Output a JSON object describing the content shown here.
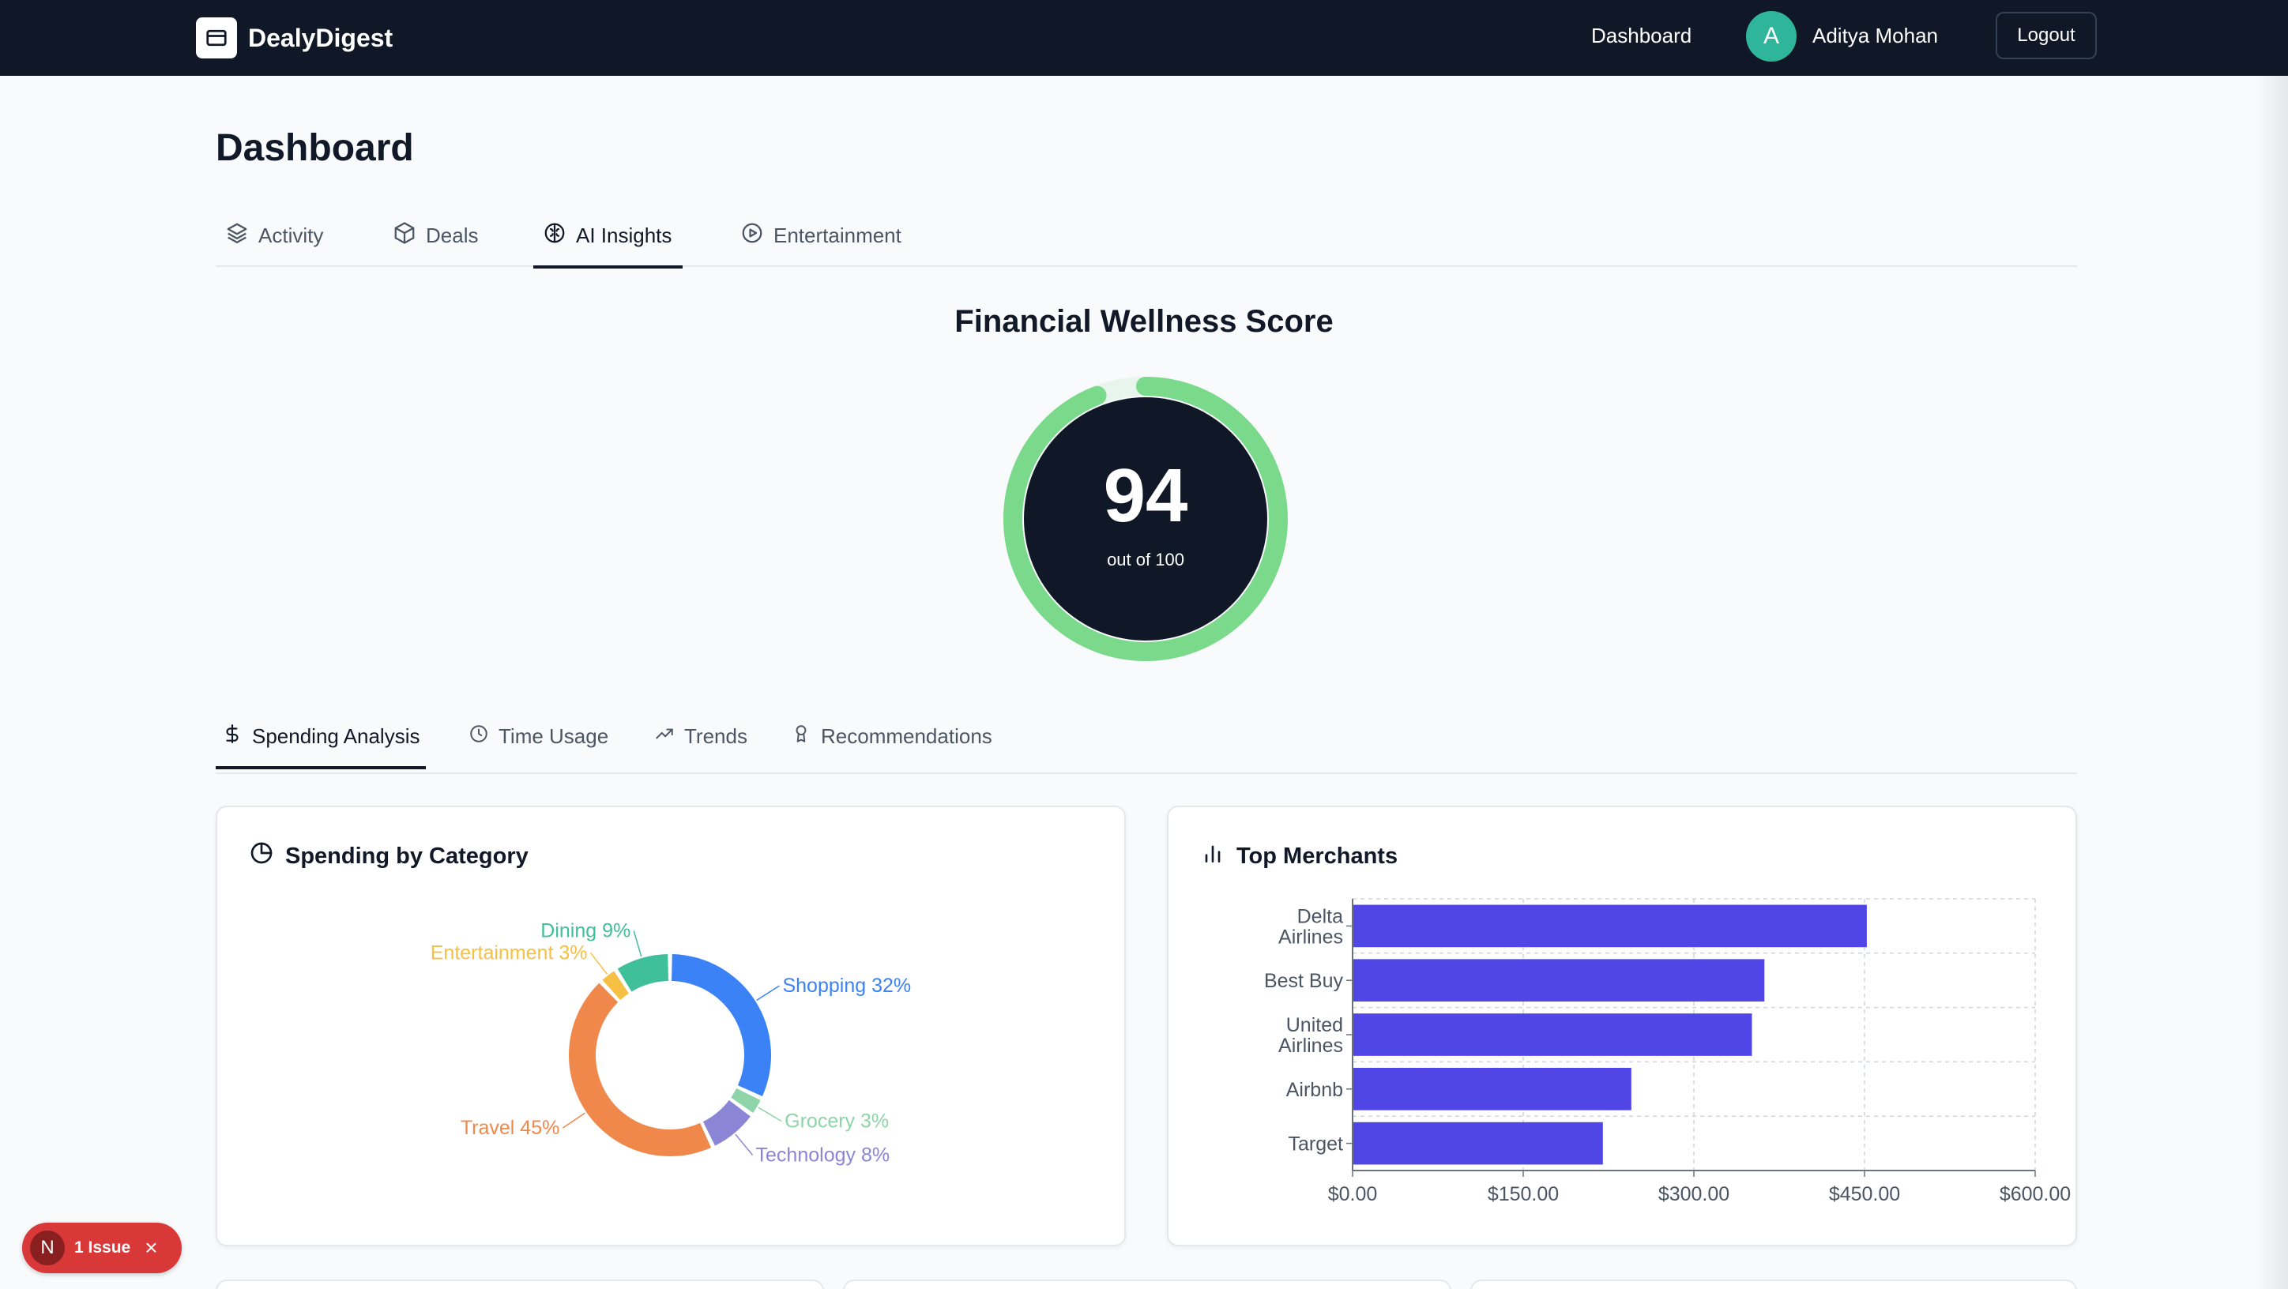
{
  "navbar": {
    "brand": "DealyDigest",
    "dashboard_link": "Dashboard",
    "user_initial": "A",
    "user_name": "Aditya Mohan",
    "logout_label": "Logout"
  },
  "page": {
    "title": "Dashboard"
  },
  "main_tabs": [
    {
      "label": "Activity",
      "icon": "layers-icon"
    },
    {
      "label": "Deals",
      "icon": "box-icon"
    },
    {
      "label": "AI Insights",
      "icon": "brain-icon",
      "active": true
    },
    {
      "label": "Entertainment",
      "icon": "play-circle-icon"
    }
  ],
  "wellness": {
    "title": "Financial Wellness Score",
    "score": "94",
    "subtitle": "out of 100",
    "ring_color": "#7ad98a",
    "center_color": "#101828"
  },
  "insight_tabs": [
    {
      "label": "Spending Analysis",
      "icon": "dollar-icon",
      "active": true
    },
    {
      "label": "Time Usage",
      "icon": "clock-icon"
    },
    {
      "label": "Trends",
      "icon": "trending-up-icon"
    },
    {
      "label": "Recommendations",
      "icon": "award-icon"
    }
  ],
  "spending_card": {
    "title": "Spending by Category"
  },
  "merchants_card": {
    "title": "Top Merchants"
  },
  "chart_data": [
    {
      "type": "pie",
      "title": "Spending by Category",
      "slices": [
        {
          "label": "Shopping 32%",
          "value": 32,
          "color": "#3b82f6"
        },
        {
          "label": "Grocery 3%",
          "value": 3,
          "color": "#8fd4a8"
        },
        {
          "label": "Technology 8%",
          "value": 8,
          "color": "#8b85d6"
        },
        {
          "label": "Travel 45%",
          "value": 45,
          "color": "#f0884c"
        },
        {
          "label": "Entertainment 3%",
          "value": 3,
          "color": "#f5c043"
        },
        {
          "label": "Dining 9%",
          "value": 9,
          "color": "#3fbf9a"
        }
      ]
    },
    {
      "type": "bar",
      "orientation": "horizontal",
      "title": "Top Merchants",
      "categories": [
        "Delta Airlines",
        "Best Buy",
        "United Airlines",
        "Airbnb",
        "Target"
      ],
      "values": [
        452,
        362,
        351,
        245,
        220
      ],
      "xlim": [
        0,
        600
      ],
      "ticks": [
        "$0.00",
        "$150.00",
        "$300.00",
        "$450.00",
        "$600.00"
      ],
      "grid": true,
      "color": "#4f46e5"
    }
  ],
  "issue_badge": {
    "letter": "N",
    "label": "1 Issue"
  }
}
